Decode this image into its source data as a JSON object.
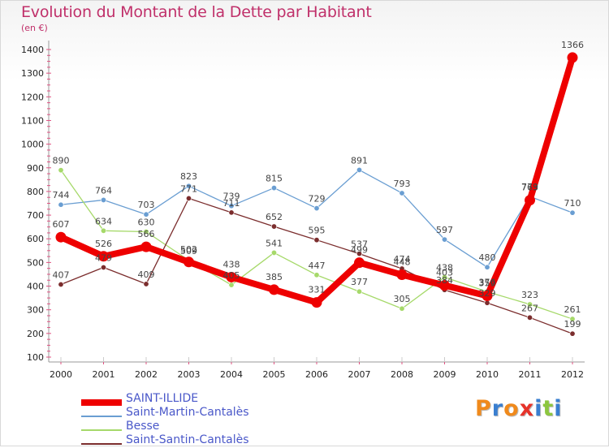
{
  "title": "Evolution du Montant de la Dette par Habitant",
  "subtitle": "(en €)",
  "brand": {
    "text": "Proxiti",
    "letters": [
      "P",
      "r",
      "o",
      "x",
      "i",
      "t",
      "i"
    ],
    "colors": [
      "#f08a1c",
      "#3a7fd0",
      "#f08a1c",
      "#e6332a",
      "#3a7fd0",
      "#8cc63f",
      "#3a7fd0"
    ]
  },
  "chart_data": {
    "type": "line",
    "title": "Evolution du Montant de la Dette par Habitant",
    "subtitle": "(en €)",
    "x": [
      "2000",
      "2001",
      "2002",
      "2003",
      "2004",
      "2005",
      "2006",
      "2007",
      "2008",
      "2009",
      "2010",
      "2011",
      "2012"
    ],
    "ylim": [
      100,
      1400
    ],
    "yticks": [
      100,
      200,
      300,
      400,
      500,
      600,
      700,
      800,
      900,
      1000,
      1100,
      1200,
      1300,
      1400
    ],
    "grid": false,
    "legend_position": "bottom-left",
    "series": [
      {
        "name": "SAINT-ILLIDE",
        "color": "#ee0000",
        "emphasis": true,
        "values": [
          607,
          526,
          566,
          502,
          438,
          385,
          331,
          499,
          448,
          403,
          359,
          763,
          1366
        ],
        "labels": [
          "607",
          "526",
          "566",
          "502",
          "438",
          "385",
          "331",
          "499",
          "448",
          "403",
          "359",
          "763",
          "1366"
        ]
      },
      {
        "name": "Saint-Martin-Cantalès",
        "color": "#6a9ed2",
        "emphasis": false,
        "values": [
          744,
          764,
          703,
          823,
          739,
          815,
          729,
          891,
          793,
          597,
          480,
          779,
          710
        ],
        "labels": [
          "744",
          "764",
          "703",
          "823",
          "739",
          "815",
          "729",
          "891",
          "793",
          "597",
          "480",
          "779",
          "710"
        ]
      },
      {
        "name": "Besse",
        "color": "#a6d96a",
        "emphasis": false,
        "values": [
          890,
          634,
          630,
          509,
          405,
          541,
          447,
          377,
          305,
          438,
          376,
          323,
          261
        ],
        "labels": [
          "890",
          "634",
          "630",
          "509",
          "405",
          "541",
          "447",
          "377",
          "305",
          "438",
          "376",
          "323",
          "261"
        ]
      },
      {
        "name": "Saint-Santin-Cantalès",
        "color": "#7b2d2d",
        "emphasis": false,
        "values": [
          407,
          479,
          409,
          771,
          711,
          652,
          595,
          537,
          474,
          384,
          329,
          267,
          199
        ],
        "labels": [
          "407",
          "479",
          "409",
          "771",
          "711",
          "652",
          "595",
          "537",
          "474",
          "384",
          "329",
          "267",
          "199"
        ]
      }
    ]
  }
}
